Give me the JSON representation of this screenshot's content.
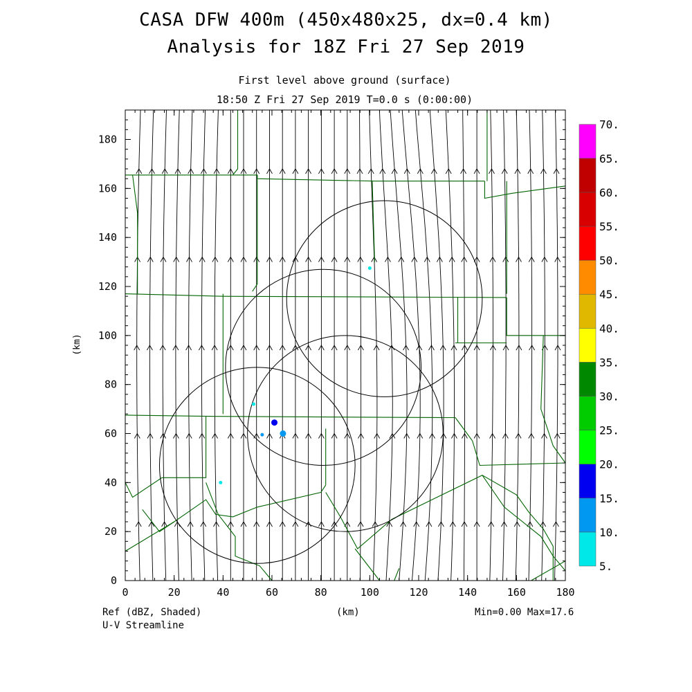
{
  "header": {
    "title_line1": "CASA DFW 400m (450x480x25, dx=0.4 km)",
    "title_line2": "Analysis for 18Z Fri 27 Sep 2019",
    "subtitle_line1": "First level above ground (surface)",
    "subtitle_line2": "18:50 Z Fri 27 Sep 2019    T=0.0 s (0:00:00)"
  },
  "footer": {
    "left_line1": "Ref (dBZ, Shaded)",
    "left_line2": "U-V Streamline",
    "center": "(km)",
    "right": "Min=0.00 Max=17.6"
  },
  "chart_data": {
    "type": "map",
    "xlabel": "(km)",
    "ylabel": "(km)",
    "xlim": [
      0,
      180
    ],
    "ylim": [
      0,
      192
    ],
    "x_ticks": [
      "0",
      "20",
      "40",
      "60",
      "80",
      "100",
      "120",
      "140",
      "160",
      "180"
    ],
    "y_ticks": [
      "0",
      "20",
      "40",
      "60",
      "80",
      "100",
      "120",
      "140",
      "160",
      "180"
    ],
    "radar_range_rings": [
      {
        "center_x": 54,
        "center_y": 47,
        "radius_km": 40
      },
      {
        "center_x": 81,
        "center_y": 87,
        "radius_km": 40
      },
      {
        "center_x": 90,
        "center_y": 60,
        "radius_km": 40
      },
      {
        "center_x": 106,
        "center_y": 115,
        "radius_km": 40
      }
    ],
    "reflectivity_echoes": [
      {
        "x": 61.0,
        "y": 64.5,
        "dbz": 15
      },
      {
        "x": 64.5,
        "y": 60.0,
        "dbz": 12
      },
      {
        "x": 56.0,
        "y": 59.5,
        "dbz": 10
      },
      {
        "x": 52.5,
        "y": 72.0,
        "dbz": 6
      },
      {
        "x": 100.0,
        "y": 127.5,
        "dbz": 6
      },
      {
        "x": 39.0,
        "y": 40.0,
        "dbz": 5
      }
    ],
    "streamline_flow": "predominantly southerly (toward north)",
    "colorbar": {
      "label_unit": "dBZ",
      "levels": [
        "5.",
        "10.",
        "15.",
        "20.",
        "25.",
        "30.",
        "35.",
        "40.",
        "45.",
        "50.",
        "55.",
        "60.",
        "65.",
        "70."
      ],
      "colors": [
        "#00e8e8",
        "#0098f0",
        "#0000f0",
        "#00ff00",
        "#00cc00",
        "#008800",
        "#ffff00",
        "#e0b800",
        "#ff8c00",
        "#ff0000",
        "#d80000",
        "#c00000",
        "#ff00ff"
      ]
    },
    "county_line_color": "#006400",
    "value_min": 0.0,
    "value_max": 17.6
  }
}
